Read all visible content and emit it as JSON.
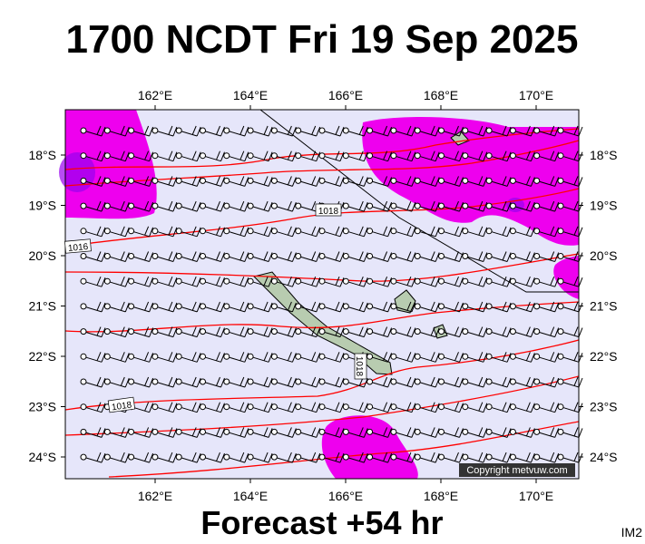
{
  "header": {
    "title": "1700 NCDT Fri 19 Sep 2025"
  },
  "map": {
    "lon_labels": [
      "162°E",
      "164°E",
      "166°E",
      "168°E",
      "170°E"
    ],
    "lat_labels": [
      "18°S",
      "19°S",
      "20°S",
      "21°S",
      "22°S",
      "23°S",
      "24°S"
    ],
    "isobar_labels": [
      "1018",
      "1016",
      "1018",
      "1018"
    ],
    "copyright": "Copyright metvuw.com"
  },
  "footer": {
    "forecast": "Forecast +54 hr",
    "id": "IM2"
  }
}
